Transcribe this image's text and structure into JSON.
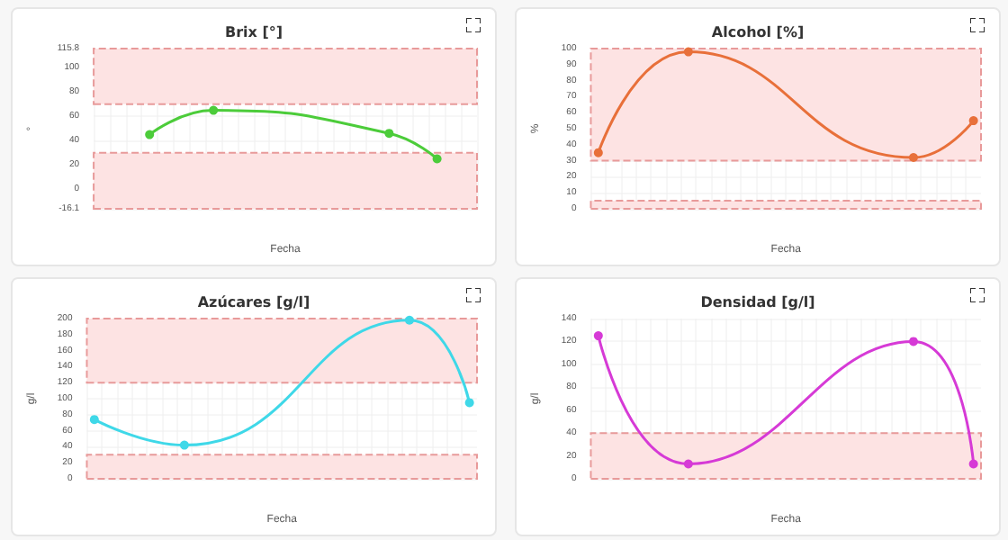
{
  "chart_data": [
    {
      "type": "line",
      "title": "Brix [°]",
      "xlabel": "Fecha",
      "ylabel": "°",
      "categories": [
        null,
        null,
        null,
        null,
        null,
        null,
        null,
        null,
        null,
        null,
        null,
        null,
        null,
        null,
        null,
        null,
        null,
        null,
        null,
        null,
        null,
        null,
        null,
        null
      ],
      "series": [
        {
          "color": "#4ccc3a",
          "values": [
            null,
            null,
            null,
            45,
            null,
            null,
            null,
            65,
            null,
            null,
            null,
            null,
            null,
            null,
            null,
            null,
            null,
            null,
            46,
            null,
            null,
            25,
            null,
            null
          ]
        }
      ],
      "ylim": [
        -16.1,
        115.8
      ],
      "yticks": [
        -16.1,
        0,
        20,
        40,
        60,
        80,
        100,
        115.8
      ],
      "grid": true,
      "marker": "circle",
      "line_style": "solid",
      "bands": [
        {
          "axis": "y",
          "from": 70,
          "to": 115.8,
          "color": "#fde3e3"
        },
        {
          "axis": "y",
          "from": -16.1,
          "to": 30,
          "color": "#fde3e3"
        }
      ]
    },
    {
      "type": "line",
      "title": "Alcohol [%]",
      "xlabel": "Fecha",
      "ylabel": "%",
      "categories": [
        null,
        null,
        null,
        null,
        null,
        null,
        null,
        null,
        null,
        null,
        null,
        null,
        null,
        null,
        null,
        null,
        null,
        null,
        null,
        null,
        null,
        null,
        null,
        null,
        null,
        null
      ],
      "series": [
        {
          "color": "#e8703a",
          "values": [
            35,
            null,
            null,
            null,
            null,
            null,
            98,
            null,
            null,
            null,
            null,
            null,
            null,
            null,
            null,
            null,
            null,
            null,
            null,
            null,
            null,
            32,
            null,
            null,
            null,
            55
          ]
        }
      ],
      "ylim": [
        0,
        100
      ],
      "yticks": [
        0,
        10,
        20,
        30,
        40,
        50,
        60,
        70,
        80,
        90,
        100
      ],
      "grid": true,
      "marker": "circle",
      "line_style": "solid",
      "bands": [
        {
          "axis": "y",
          "from": 30,
          "to": 100,
          "color": "#fde3e3"
        },
        {
          "axis": "y",
          "from": 0,
          "to": 5,
          "color": "#fde3e3"
        }
      ]
    },
    {
      "type": "line",
      "title": "Azúcares [g/l]",
      "xlabel": "Fecha",
      "ylabel": "g/l",
      "categories": [
        null,
        null,
        null,
        null,
        null,
        null,
        null,
        null,
        null,
        null,
        null,
        null,
        null,
        null,
        null,
        null,
        null,
        null,
        null,
        null,
        null,
        null,
        null,
        null,
        null,
        null
      ],
      "series": [
        {
          "color": "#3fd8e8",
          "values": [
            74,
            null,
            null,
            null,
            null,
            null,
            42,
            null,
            null,
            null,
            null,
            null,
            null,
            null,
            null,
            null,
            null,
            null,
            null,
            null,
            null,
            198,
            null,
            null,
            null,
            95
          ]
        }
      ],
      "ylim": [
        0,
        200
      ],
      "yticks": [
        0,
        20,
        40,
        60,
        80,
        100,
        120,
        140,
        160,
        180,
        200
      ],
      "grid": true,
      "marker": "circle",
      "line_style": "solid",
      "bands": [
        {
          "axis": "y",
          "from": 120,
          "to": 200,
          "color": "#fde3e3"
        },
        {
          "axis": "y",
          "from": 0,
          "to": 30,
          "color": "#fde3e3"
        }
      ]
    },
    {
      "type": "line",
      "title": "Densidad [g/l]",
      "xlabel": "Fecha",
      "ylabel": "g/l",
      "categories": [
        null,
        null,
        null,
        null,
        null,
        null,
        null,
        null,
        null,
        null,
        null,
        null,
        null,
        null,
        null,
        null,
        null,
        null,
        null,
        null,
        null,
        null,
        null,
        null,
        null,
        null
      ],
      "series": [
        {
          "color": "#d63ad6",
          "values": [
            125,
            null,
            null,
            null,
            null,
            null,
            13,
            null,
            null,
            null,
            null,
            null,
            null,
            null,
            null,
            null,
            null,
            null,
            null,
            null,
            null,
            120,
            null,
            null,
            null,
            13
          ]
        }
      ],
      "ylim": [
        0,
        140
      ],
      "yticks": [
        0,
        20,
        40,
        60,
        80,
        100,
        120,
        140
      ],
      "grid": true,
      "marker": "circle",
      "line_style": "solid",
      "bands": [
        {
          "axis": "y",
          "from": 0,
          "to": 40,
          "color": "#fde3e3"
        }
      ]
    }
  ]
}
